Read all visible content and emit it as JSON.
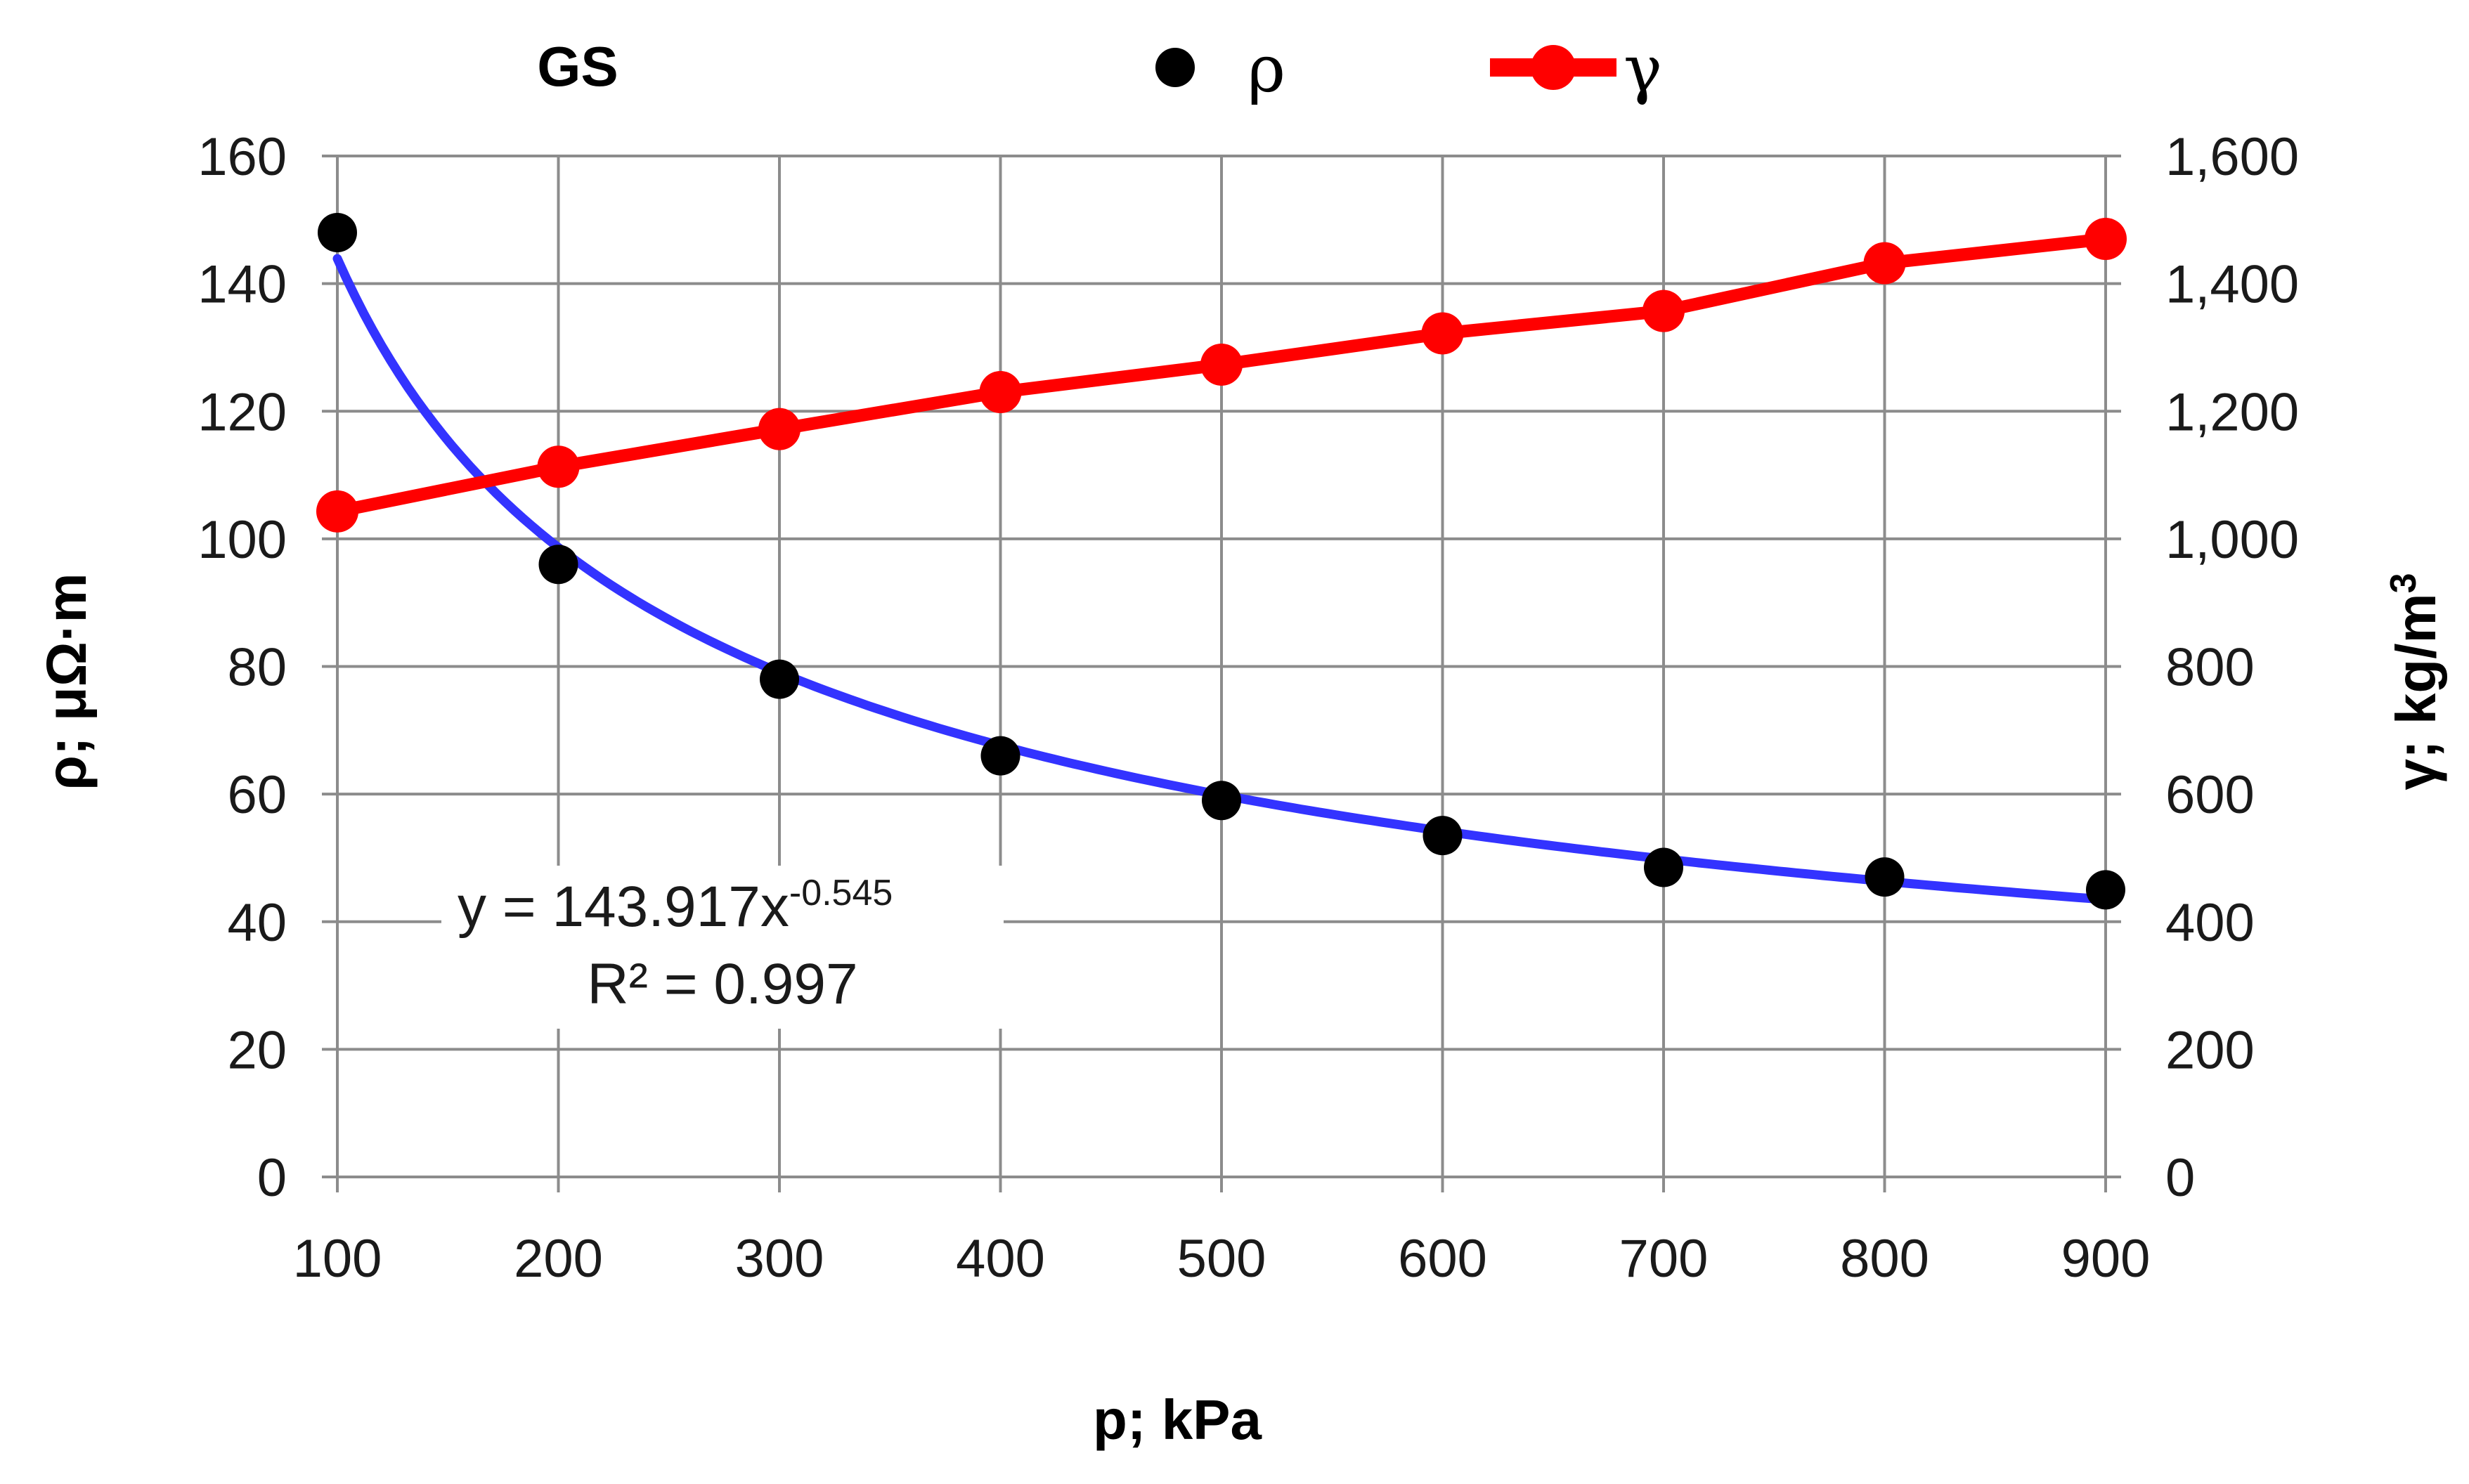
{
  "chart_data": {
    "type": "scatter",
    "title": "GS",
    "xlabel": "p;  kPa",
    "ylabel": "ρ; μΩ·m",
    "ylabel2_main": "γ; kg/m",
    "ylabel2_sup": "3",
    "xlim": [
      100,
      900
    ],
    "ylim": [
      0,
      160
    ],
    "y2lim": [
      0,
      1600
    ],
    "x_ticks": [
      100,
      200,
      300,
      400,
      500,
      600,
      700,
      800,
      900
    ],
    "x_tick_labels": [
      "100",
      "200",
      "300",
      "400",
      "500",
      "600",
      "700",
      "800",
      "900"
    ],
    "y_ticks": [
      0,
      20,
      40,
      60,
      80,
      100,
      120,
      140,
      160
    ],
    "y_tick_labels": [
      "0",
      "20",
      "40",
      "60",
      "80",
      "100",
      "120",
      "140",
      "160"
    ],
    "y2_ticks": [
      0,
      200,
      400,
      600,
      800,
      1000,
      1200,
      1400,
      1600
    ],
    "y2_tick_labels": [
      "0",
      "200",
      "400",
      "600",
      "800",
      "1,000",
      "1,200",
      "1,400",
      "1,600"
    ],
    "grid": true,
    "legend_position": "top",
    "series": [
      {
        "name": "ρ",
        "kind": "scatter",
        "axis": "left",
        "color": "#000000",
        "x": [
          100,
          200,
          300,
          400,
          500,
          600,
          700,
          800,
          900
        ],
        "values": [
          148,
          96,
          78,
          66,
          59,
          53.5,
          48.5,
          47,
          45
        ]
      },
      {
        "name": "γ",
        "kind": "line-marker",
        "axis": "right",
        "color": "#ff0000",
        "x": [
          100,
          200,
          300,
          400,
          500,
          600,
          700,
          800,
          900
        ],
        "values": [
          1043,
          1113,
          1172,
          1230,
          1273,
          1322,
          1357,
          1432,
          1470
        ]
      }
    ],
    "trendline": {
      "type": "power",
      "color": "#3333ff",
      "coefficient": 143.917,
      "exponent": -0.545,
      "x_scale": 100,
      "equation_main": "y = 143.917x",
      "equation_exp": "-0.545",
      "r_squared": "R² = 0.997"
    }
  }
}
